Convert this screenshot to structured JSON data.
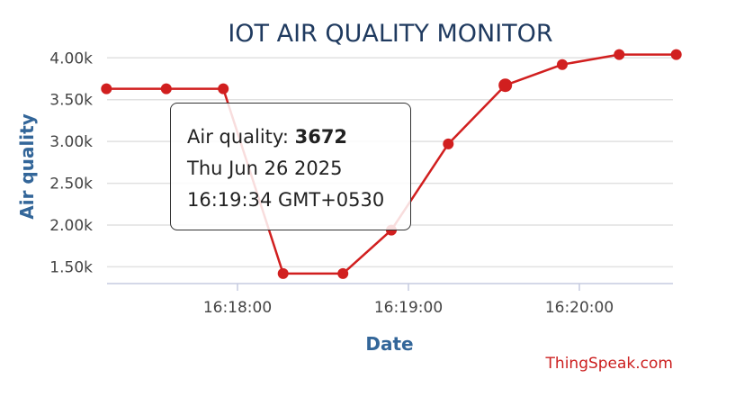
{
  "chart_data": {
    "type": "line",
    "title": "IOT AIR QUALITY MONITOR",
    "xlabel": "Date",
    "ylabel": "Air quality",
    "x_ticks": [
      "16:18:00",
      "16:19:00",
      "16:20:00"
    ],
    "y_ticks": [
      "1.50k",
      "2.00k",
      "2.50k",
      "3.00k",
      "3.50k",
      "4.00k"
    ],
    "ylim": [
      1300,
      4100
    ],
    "grid": true,
    "legend": "none",
    "series": [
      {
        "x": [
          "16:17:14",
          "16:17:35",
          "16:17:55",
          "16:18:16",
          "16:18:37",
          "16:18:54",
          "16:19:14",
          "16:19:34",
          "16:19:54",
          "16:20:14",
          "16:20:34"
        ],
        "values": [
          3630,
          3630,
          3630,
          1420,
          1420,
          1940,
          2970,
          3672,
          3920,
          4040,
          4040
        ],
        "color": "#d11f1f"
      }
    ],
    "highlighted_point": 7
  },
  "tooltip": {
    "label": "Air quality:",
    "value": "3672",
    "date": "Thu Jun 26 2025",
    "time": "16:19:34 GMT+0530"
  },
  "credit": "ThingSpeak.com"
}
